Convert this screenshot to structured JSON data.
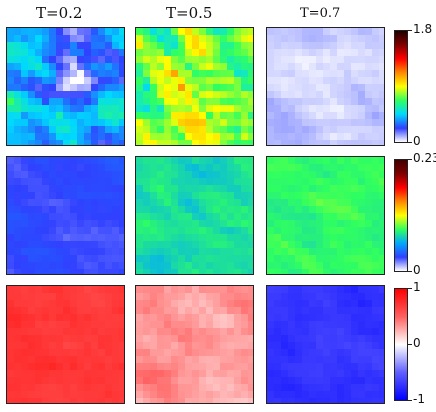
{
  "chart_data": {
    "type": "heatmap",
    "columns": [
      "T=0.2",
      "T=0.5",
      "T=0.7"
    ],
    "rows": [
      {
        "colorbar": {
          "ticks": [
            "1.8",
            "0"
          ],
          "range": [
            0,
            1.8
          ],
          "colormap": [
            "#ffffff",
            "#3040ff",
            "#00d8ff",
            "#30ff60",
            "#ffff00",
            "#ff8800",
            "#ff0000",
            "#800000",
            "#200000"
          ]
        },
        "panels": [
          {
            "column": "T=0.2",
            "mean": 0.35,
            "spread": 0.35,
            "feature_size": "medium"
          },
          {
            "column": "T=0.5",
            "mean": 0.75,
            "spread": 0.45,
            "feature_size": "medium"
          },
          {
            "column": "T=0.7",
            "mean": 0.05,
            "spread": 0.07,
            "feature_size": "medium"
          }
        ]
      },
      {
        "colorbar": {
          "ticks": [
            "0.23",
            "0"
          ],
          "range": [
            0,
            0.23
          ],
          "colormap": [
            "#ffffff",
            "#3040ff",
            "#00a8ff",
            "#30ff60",
            "#ffff00",
            "#ff8800",
            "#ff0000",
            "#800000",
            "#400000"
          ]
        },
        "panels": [
          {
            "column": "T=0.2",
            "mean": 0.03,
            "spread": 0.01,
            "feature_size": "large"
          },
          {
            "column": "T=0.5",
            "mean": 0.075,
            "spread": 0.012,
            "feature_size": "small"
          },
          {
            "column": "T=0.7",
            "mean": 0.085,
            "spread": 0.01,
            "feature_size": "small"
          }
        ]
      },
      {
        "colorbar": {
          "ticks": [
            "1",
            "0",
            "-1"
          ],
          "range": [
            -1,
            1
          ],
          "colormap": [
            "#0000ff",
            "#6060ff",
            "#ffffff",
            "#ff6060",
            "#ff0000"
          ]
        },
        "panels": [
          {
            "column": "T=0.2",
            "mean": 0.72,
            "spread": 0.12,
            "feature_size": "medium"
          },
          {
            "column": "T=0.5",
            "mean": 0.3,
            "spread": 0.2,
            "feature_size": "medium"
          },
          {
            "column": "T=0.7",
            "mean": -0.72,
            "spread": 0.12,
            "feature_size": "medium"
          }
        ]
      }
    ]
  }
}
